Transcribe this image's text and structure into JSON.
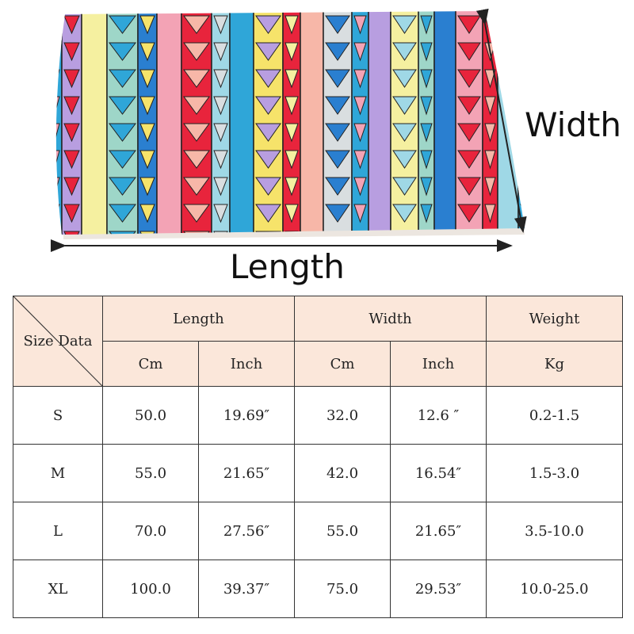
{
  "labels": {
    "width": "Width",
    "length": "Length"
  },
  "table": {
    "corner": "Size Data",
    "groups": [
      "Length",
      "Width",
      "Weight"
    ],
    "units": [
      "Cm",
      "Inch",
      "Cm",
      "Inch",
      "Kg"
    ],
    "rows": [
      {
        "size": "S",
        "length_cm": "50.0",
        "length_in": "19.69″",
        "width_cm": "32.0",
        "width_in": "12.6 ″",
        "weight": "0.2-1.5"
      },
      {
        "size": "M",
        "length_cm": "55.0",
        "length_in": "21.65″",
        "width_cm": "42.0",
        "width_in": "16.54″",
        "weight": "1.5-3.0"
      },
      {
        "size": "L",
        "length_cm": "70.0",
        "length_in": "27.56″",
        "width_cm": "55.0",
        "width_in": "21.65″",
        "weight": "3.5-10.0"
      },
      {
        "size": "XL",
        "length_cm": "100.0",
        "length_in": "39.37″",
        "width_cm": "75.0",
        "width_in": "29.53″",
        "weight": "10.0-25.0"
      }
    ],
    "header_color": "#fbe7da"
  },
  "mat_colors": [
    "#2fa6d8",
    "#b89ee0",
    "#f5f0a0",
    "#9ed6c8",
    "#2a7fd0",
    "#f3a3b5",
    "#e8243c",
    "#9fd8e6",
    "#2fa6d8",
    "#f6e36a",
    "#e8243c",
    "#f7b7a8",
    "#d9dee0"
  ]
}
